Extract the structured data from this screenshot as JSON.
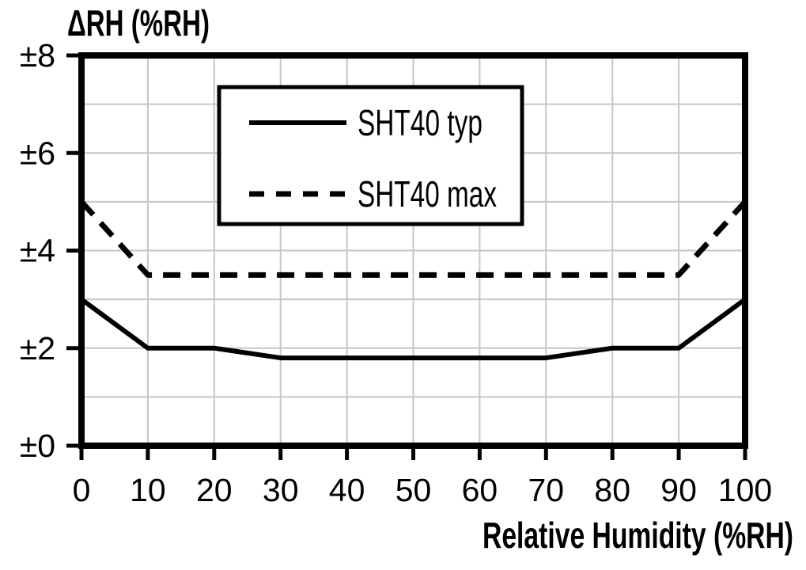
{
  "page": {
    "background": "#ffffff"
  },
  "chart_data": {
    "type": "line",
    "ylabel": "ΔRH (%RH)",
    "xlabel": "Relative Humidity (%RH)",
    "xlim": [
      0,
      100
    ],
    "ylim": [
      0,
      8
    ],
    "x_ticks": [
      0,
      10,
      20,
      30,
      40,
      50,
      60,
      70,
      80,
      90,
      100
    ],
    "y_ticks": [
      0,
      2,
      4,
      6,
      8
    ],
    "y_tick_labels": [
      "±0",
      "±2",
      "±4",
      "±6",
      "±8"
    ],
    "grid": {
      "visible": true,
      "x_every": 10,
      "y_every": 1,
      "color": "#c6c6c6"
    },
    "frame_color": "#000000",
    "legend": {
      "position": "inside-top-center",
      "entries": [
        {
          "label": "SHT40 typ",
          "line_style": "solid"
        },
        {
          "label": "SHT40 max",
          "line_style": "dashed"
        }
      ]
    },
    "series": [
      {
        "name": "SHT40 typ",
        "line_style": "solid",
        "color": "#000000",
        "x": [
          0,
          10,
          20,
          30,
          40,
          50,
          60,
          70,
          80,
          90,
          100
        ],
        "y": [
          3.0,
          2.0,
          2.0,
          1.8,
          1.8,
          1.8,
          1.8,
          1.8,
          2.0,
          2.0,
          3.0
        ]
      },
      {
        "name": "SHT40 max",
        "line_style": "dashed",
        "color": "#000000",
        "x": [
          0,
          10,
          20,
          30,
          40,
          50,
          60,
          70,
          80,
          90,
          100
        ],
        "y": [
          5.0,
          3.5,
          3.5,
          3.5,
          3.5,
          3.5,
          3.5,
          3.5,
          3.5,
          3.5,
          5.0
        ]
      }
    ]
  }
}
